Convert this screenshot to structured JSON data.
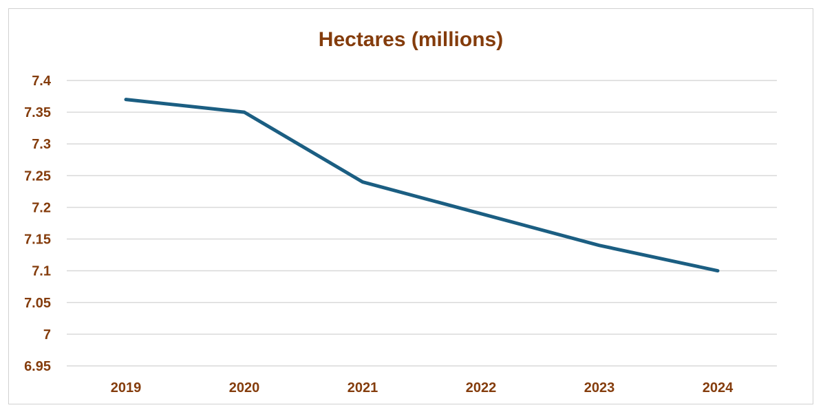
{
  "chart_data": {
    "type": "line",
    "title": "Hectares (millions)",
    "xlabel": "",
    "ylabel": "",
    "categories": [
      "2019",
      "2020",
      "2021",
      "2022",
      "2023",
      "2024"
    ],
    "series": [
      {
        "values": [
          7.37,
          7.35,
          7.24,
          7.19,
          7.14,
          7.1
        ]
      }
    ],
    "ylim": [
      6.95,
      7.4
    ],
    "yticks": [
      "7.4",
      "7.35",
      "7.3",
      "7.25",
      "7.2",
      "7.15",
      "7.1",
      "7.05",
      "7",
      "6.95"
    ],
    "grid": true,
    "legend": "none",
    "colors": {
      "line": "#1b5e82",
      "text": "#843c0c",
      "grid": "#d9d9d9"
    }
  }
}
